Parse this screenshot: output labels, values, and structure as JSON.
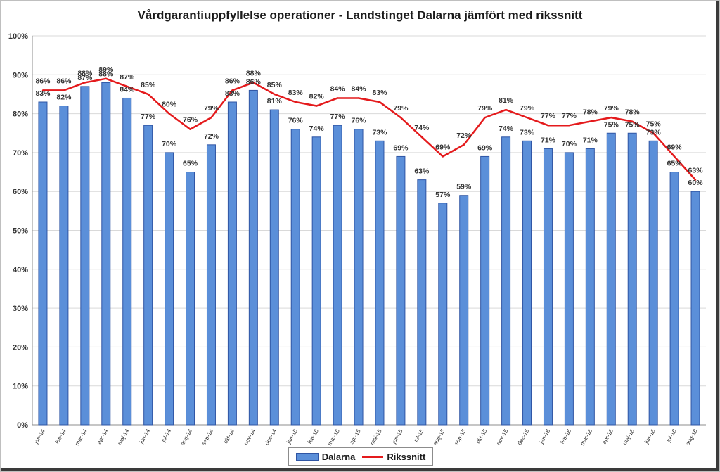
{
  "chart_data": {
    "type": "bar",
    "title": "Vårdgarantiuppfyllelse operationer - Landstinget Dalarna jämfört med rikssnitt",
    "categories": [
      "jan-14",
      "feb-14",
      "mar-14",
      "apr-14",
      "maj-14",
      "jun-14",
      "jul-14",
      "aug-14",
      "sep-14",
      "okt-14",
      "nov-14",
      "dec-14",
      "jan-15",
      "feb-15",
      "mar-15",
      "apr-15",
      "maj-15",
      "jun-15",
      "jul-15",
      "aug-15",
      "sep-15",
      "okt-15",
      "nov-15",
      "dec-15",
      "jan-16",
      "feb-16",
      "mar-16",
      "apr-16",
      "maj-16",
      "jun-16",
      "jul-16",
      "aug-16"
    ],
    "series": [
      {
        "name": "Dalarna",
        "kind": "bar",
        "color": "#5b8fd9",
        "values": [
          83,
          82,
          87,
          88,
          84,
          77,
          70,
          65,
          72,
          83,
          86,
          81,
          76,
          74,
          77,
          76,
          73,
          69,
          63,
          57,
          59,
          69,
          74,
          73,
          71,
          70,
          71,
          75,
          75,
          73,
          65,
          60
        ]
      },
      {
        "name": "Rikssnitt",
        "kind": "line",
        "color": "#e41a1c",
        "values": [
          86,
          86,
          88,
          89,
          87,
          85,
          80,
          76,
          79,
          86,
          88,
          85,
          83,
          82,
          84,
          84,
          83,
          79,
          74,
          69,
          72,
          79,
          81,
          79,
          77,
          77,
          78,
          79,
          78,
          75,
          69,
          63
        ]
      }
    ],
    "y_ticks": [
      "0%",
      "10%",
      "20%",
      "30%",
      "40%",
      "50%",
      "60%",
      "70%",
      "80%",
      "90%",
      "100%"
    ],
    "ylim": [
      0,
      100
    ],
    "grid": true,
    "legend_position": "bottom"
  }
}
